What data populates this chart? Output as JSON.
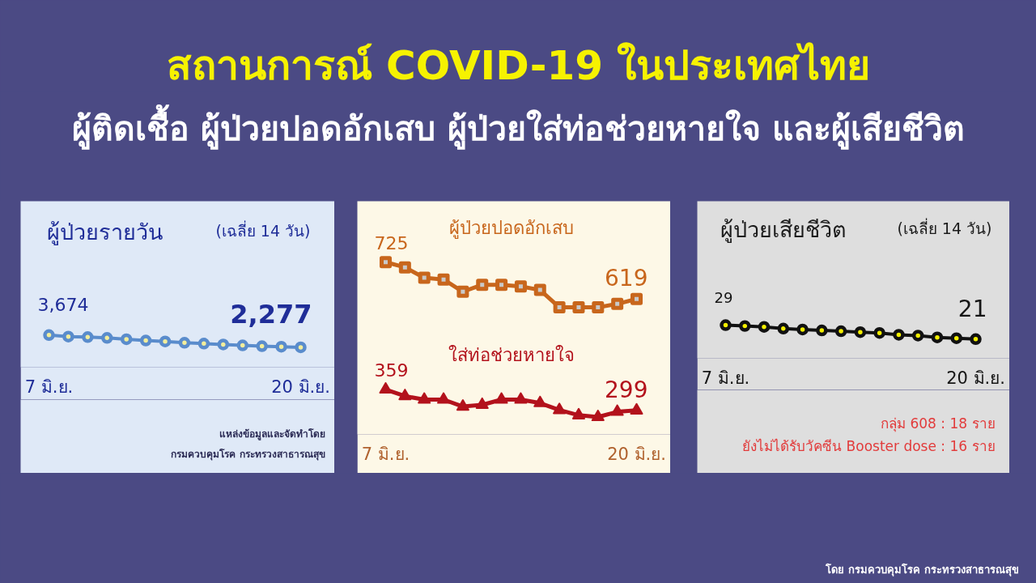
{
  "chart_data": [
    {
      "type": "other",
      "title": "สถานการณ์ COVID-19 ในประเทศไทย",
      "subtitle": "ผู้ติดเชื้อ ผู้ป่วยปอดอักเสบ ผู้ป่วยใส่ท่อช่วยหายใจ และผู้เสียชีวิต",
      "annotations": [
        "โดย กรมควบคุมโรค กระทรวงสาธารณสุข"
      ]
    },
    {
      "type": "line",
      "title": "ผู้ป่วยรายวัน",
      "subtitle": "(เฉลี่ย 14 วัน)",
      "annotations": [
        "แหล่งข้อมูลและจัดทำโดย",
        "กรมควบคุมโรค กระทรวงสาธารณสุข"
      ],
      "tick_labels": "x",
      "ylim": [
        0,
        19000
      ],
      "categories": [
        "7 มิ.ย.",
        null,
        null,
        null,
        null,
        null,
        null,
        null,
        null,
        null,
        null,
        null,
        null,
        "20 มิ.ย."
      ],
      "series": [
        {
          "color": "#5a8ccc",
          "marker": "circle",
          "values": [
            3674,
            3500,
            3450,
            3350,
            3200,
            3050,
            2950,
            2800,
            2700,
            2600,
            2500,
            2400,
            2350,
            2277
          ],
          "value_labels": [
            "3,674",
            null,
            null,
            null,
            null,
            null,
            null,
            null,
            null,
            null,
            null,
            null,
            null,
            "2,277"
          ]
        }
      ]
    },
    {
      "type": "line",
      "tick_labels": "x",
      "ylim": [
        230,
        900
      ],
      "categories": [
        "7 มิ.ย.",
        null,
        null,
        null,
        null,
        null,
        null,
        null,
        null,
        null,
        null,
        null,
        null,
        "20 มิ.ย."
      ],
      "series": [
        {
          "name": "ผู้ป่วยปอดอักเสบ",
          "color": "#c8661c",
          "marker": "square",
          "values": [
            725,
            710,
            680,
            675,
            640,
            660,
            660,
            655,
            645,
            595,
            595,
            595,
            605,
            619
          ],
          "value_labels": [
            "725",
            null,
            null,
            null,
            null,
            null,
            null,
            null,
            null,
            null,
            null,
            null,
            null,
            "619"
          ]
        },
        {
          "name": "ใส่ท่อช่วยหายใจ",
          "color": "#b3121c",
          "marker": "triangle",
          "values": [
            359,
            340,
            330,
            330,
            310,
            315,
            330,
            330,
            320,
            300,
            285,
            280,
            295,
            299
          ],
          "value_labels": [
            "359",
            null,
            null,
            null,
            null,
            null,
            null,
            null,
            null,
            null,
            null,
            null,
            null,
            "299"
          ]
        }
      ]
    },
    {
      "type": "line",
      "title": "ผู้ป่วยเสียชีวิต",
      "subtitle": "(เฉลี่ย 14 วัน)",
      "annotations": [
        "กลุ่ม 608 : 18 ราย",
        "ยังไม่ได้รับวัคซีน Booster dose : 16 ราย"
      ],
      "tick_labels": "x",
      "ylim": [
        10,
        100
      ],
      "categories": [
        "7 มิ.ย.",
        null,
        null,
        null,
        null,
        null,
        null,
        null,
        null,
        null,
        null,
        null,
        null,
        "20 มิ.ย."
      ],
      "series": [
        {
          "color": "#111111",
          "marker": "circle",
          "values": [
            29,
            28.5,
            28,
            27,
            26.5,
            26,
            25.5,
            25,
            24.5,
            23.5,
            23,
            22,
            21.5,
            21
          ],
          "value_labels": [
            "29",
            null,
            null,
            null,
            null,
            null,
            null,
            null,
            null,
            null,
            null,
            null,
            null,
            "21"
          ]
        }
      ]
    }
  ]
}
